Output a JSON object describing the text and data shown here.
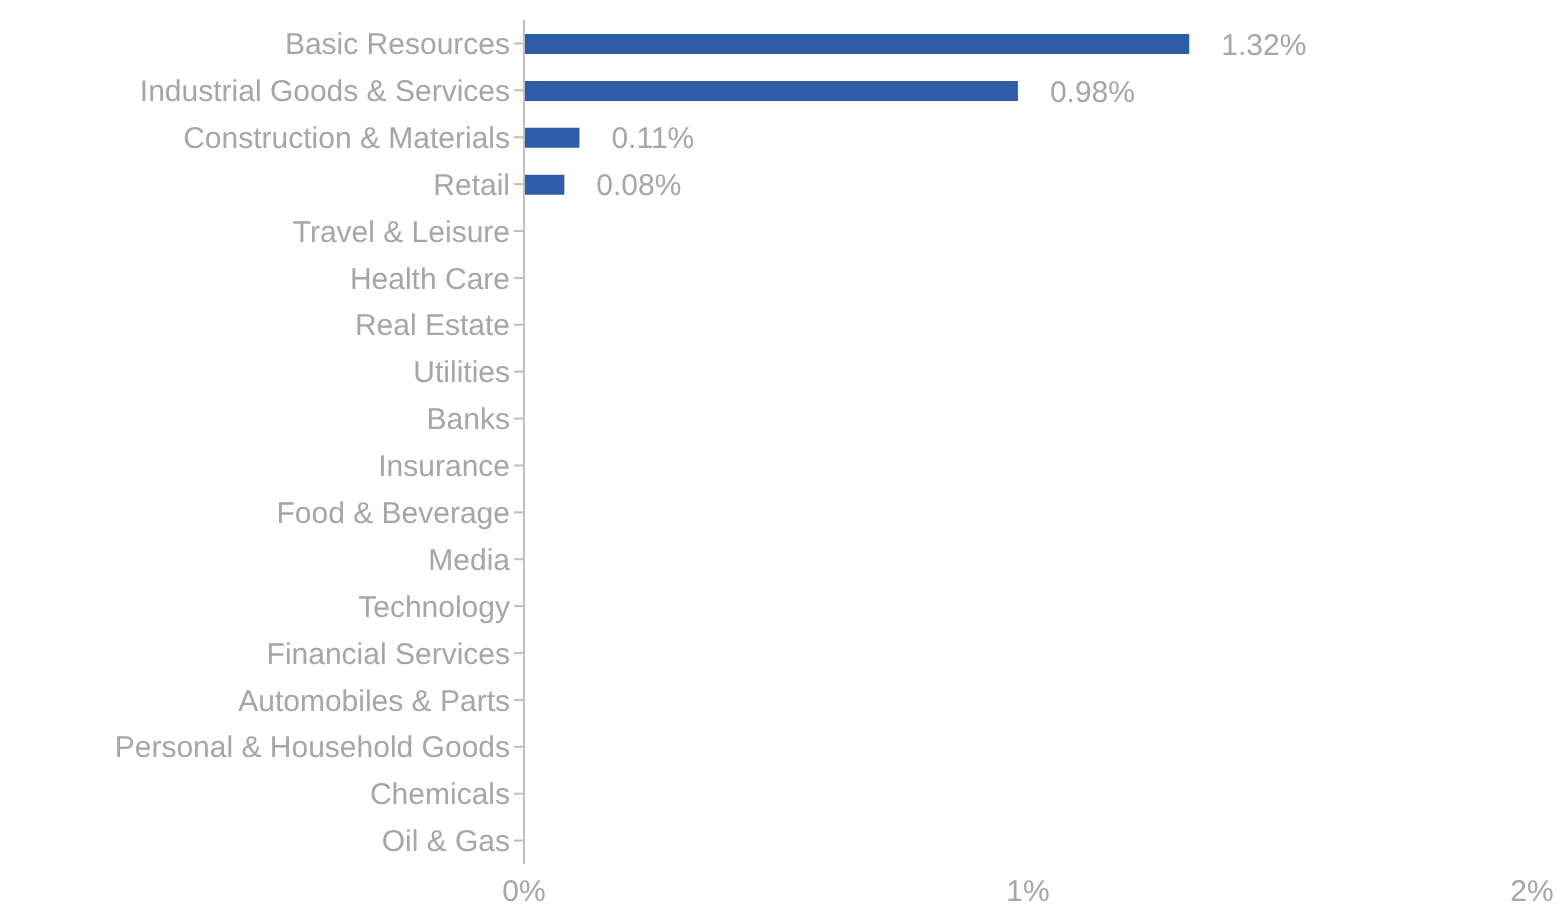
{
  "chart_data": {
    "type": "bar",
    "orientation": "horizontal",
    "categories": [
      "Basic Resources",
      "Industrial Goods & Services",
      "Construction & Materials",
      "Retail",
      "Travel & Leisure",
      "Health Care",
      "Real Estate",
      "Utilities",
      "Banks",
      "Insurance",
      "Food & Beverage",
      "Media",
      "Technology",
      "Financial Services",
      "Automobiles & Parts",
      "Personal & Household Goods",
      "Chemicals",
      "Oil & Gas"
    ],
    "values": [
      1.32,
      0.98,
      0.11,
      0.08,
      null,
      null,
      null,
      null,
      null,
      null,
      null,
      null,
      null,
      null,
      null,
      null,
      null,
      null
    ],
    "value_labels": [
      "1.32%",
      "0.98%",
      "0.11%",
      "0.08%",
      null,
      null,
      null,
      null,
      null,
      null,
      null,
      null,
      null,
      null,
      null,
      null,
      null,
      null
    ],
    "color": "#2e5ca8",
    "xlim": [
      0,
      2
    ],
    "xticks": [
      {
        "value": 0,
        "label": "0%"
      },
      {
        "value": 1,
        "label": "1%"
      },
      {
        "value": 2,
        "label": "2%"
      }
    ],
    "grid": false,
    "legend": false
  }
}
